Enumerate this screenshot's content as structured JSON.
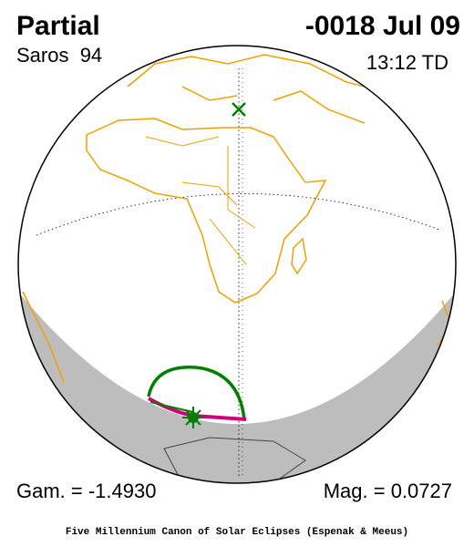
{
  "header": {
    "type": "Partial",
    "date": "-0018 Jul 09",
    "saros": "Saros  94",
    "time": "13:12 TD"
  },
  "footer": {
    "gamma": "Gam. = -1.4930",
    "magnitude": "Mag. = 0.0727",
    "credit": "Five Millennium Canon of Solar Eclipses (Espenak & Meeus)"
  }
}
